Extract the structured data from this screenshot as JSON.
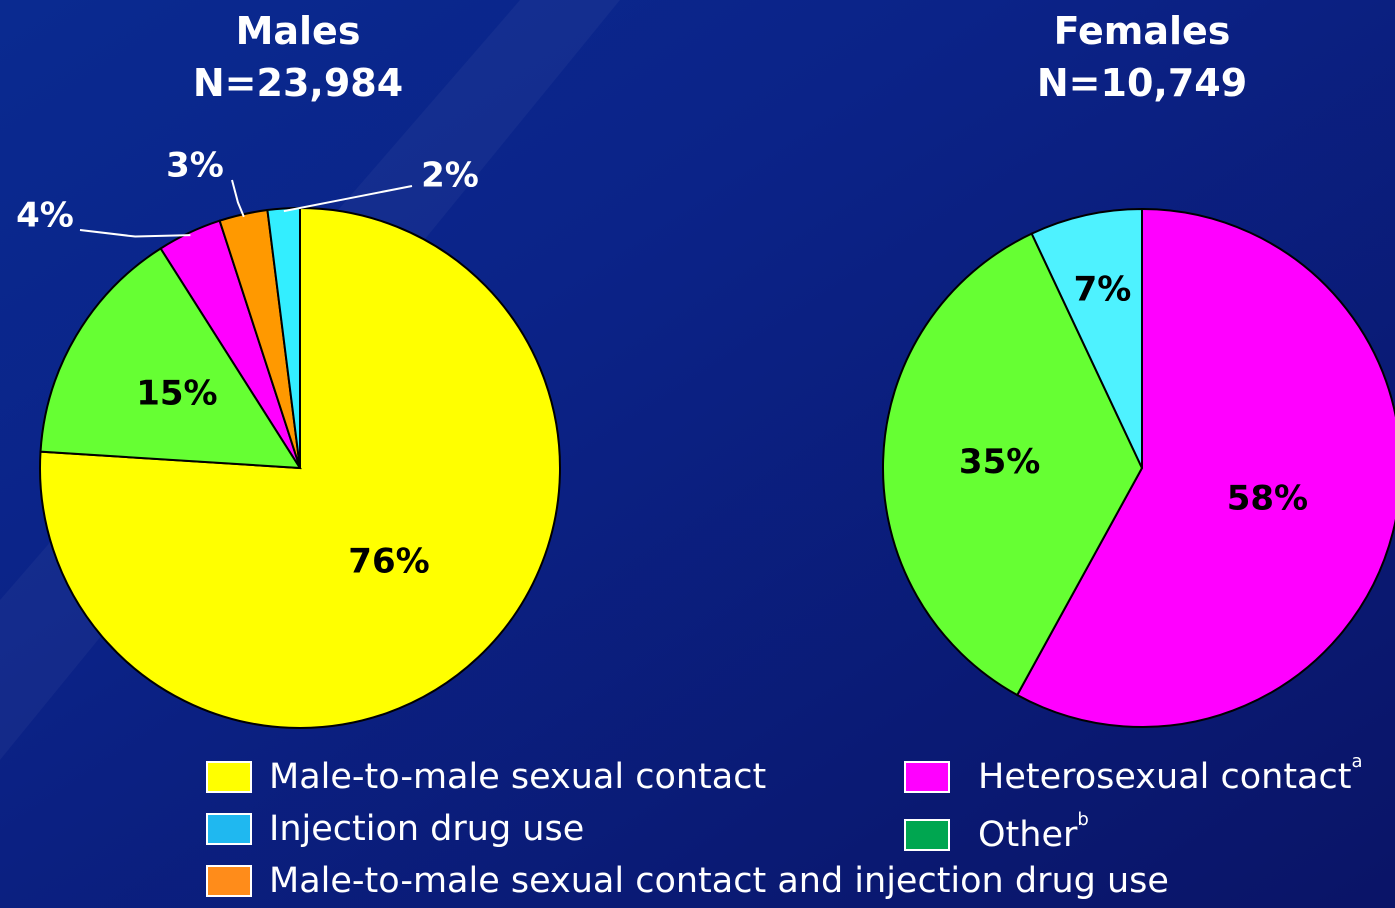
{
  "chart_data": [
    {
      "type": "pie",
      "title": "Males",
      "subtitle": "N=23,984",
      "values": [
        76,
        15,
        4,
        3,
        2
      ],
      "value_labels": [
        "76%",
        "15%",
        "4%",
        "3%",
        "2%"
      ],
      "colors": [
        "#ffff00",
        "#66ff33",
        "#ff00ff",
        "#ff9900",
        "#33eeff"
      ]
    },
    {
      "type": "pie",
      "title": "Females",
      "subtitle": "N=10,749",
      "values": [
        58,
        35,
        7
      ],
      "value_labels": [
        "58%",
        "35%",
        "7%"
      ],
      "colors": [
        "#ff00ff",
        "#66ff33",
        "#4ef2ff"
      ]
    }
  ],
  "legend": {
    "items": [
      {
        "name": "Male-to-male sexual contact",
        "color": "#ffff00"
      },
      {
        "name": "Injection drug use",
        "color": "#1fb8f0"
      },
      {
        "name": "Male-to-male sexual contact and injection drug use",
        "color": "#ff8c1a"
      },
      {
        "name": "Heterosexual contact",
        "note": "a",
        "color": "#ff00ff"
      },
      {
        "name": "Other",
        "note": "b",
        "color": "#00a650"
      }
    ]
  }
}
